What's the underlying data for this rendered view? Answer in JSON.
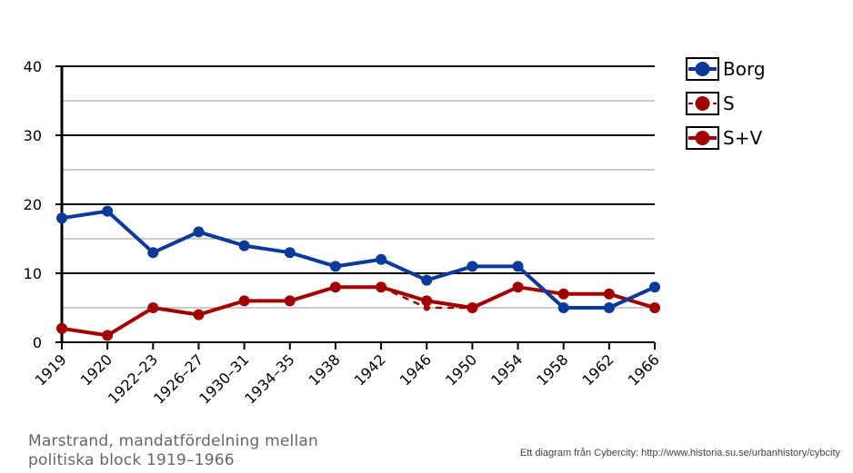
{
  "caption": {
    "line1": "Marstrand, mandatfördelning mellan",
    "line2": "politiska block 1919–1966"
  },
  "source": "Ett diagram från Cybercity: http://www.historia.su.se/urbanhistory/cybcity",
  "chart_data": {
    "type": "line",
    "title": "",
    "xlabel": "",
    "ylabel": "",
    "ylim": [
      0,
      40
    ],
    "yticks": [
      0,
      10,
      20,
      30,
      40
    ],
    "grid": true,
    "legend_position": "right",
    "categories": [
      "1919",
      "1920",
      "1922–23",
      "1926–27",
      "1930–31",
      "1934–35",
      "1938",
      "1942",
      "1946",
      "1950",
      "1954",
      "1958",
      "1962",
      "1966"
    ],
    "series": [
      {
        "name": "Borg",
        "color": "#0a3a9a",
        "style": "solid",
        "values": [
          18,
          19,
          13,
          16,
          14,
          13,
          11,
          12,
          9,
          11,
          11,
          5,
          5,
          8
        ]
      },
      {
        "name": "S",
        "color": "#a00000",
        "style": "dashed",
        "values": [
          null,
          null,
          null,
          null,
          null,
          null,
          null,
          8,
          5,
          5,
          null,
          null,
          null,
          null
        ]
      },
      {
        "name": "S+V",
        "color": "#a00000",
        "style": "solid",
        "values": [
          2,
          1,
          5,
          4,
          6,
          6,
          8,
          8,
          6,
          5,
          8,
          7,
          7,
          5
        ]
      }
    ]
  }
}
